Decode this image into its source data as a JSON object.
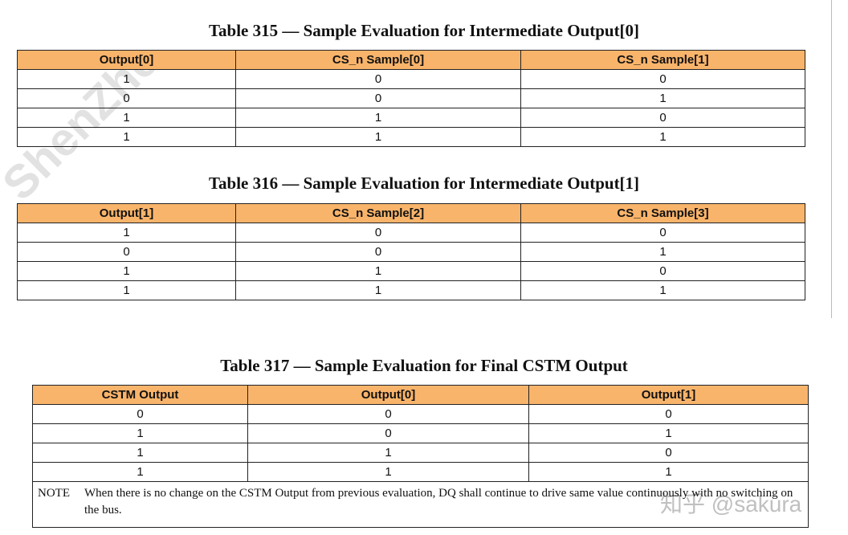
{
  "tables": [
    {
      "title": "Table 315 — Sample Evaluation for Intermediate Output[0]",
      "header": [
        "Output[0]",
        "CS_n Sample[0]",
        "CS_n Sample[1]"
      ],
      "rows": [
        [
          1,
          0,
          0
        ],
        [
          0,
          0,
          1
        ],
        [
          1,
          1,
          0
        ],
        [
          1,
          1,
          1
        ]
      ]
    },
    {
      "title": "Table 316 — Sample Evaluation for Intermediate Output[1]",
      "header": [
        "Output[1]",
        "CS_n Sample[2]",
        "CS_n Sample[3]"
      ],
      "rows": [
        [
          1,
          0,
          0
        ],
        [
          0,
          0,
          1
        ],
        [
          1,
          1,
          0
        ],
        [
          1,
          1,
          1
        ]
      ]
    },
    {
      "title": "Table 317 — Sample Evaluation for Final CSTM Output",
      "header": [
        "CSTM Output",
        "Output[0]",
        "Output[1]"
      ],
      "rows": [
        [
          0,
          0,
          0
        ],
        [
          1,
          0,
          1
        ],
        [
          1,
          1,
          0
        ],
        [
          1,
          1,
          1
        ]
      ],
      "note": {
        "label": "NOTE",
        "text": "When there is no change on the CSTM Output from previous evaluation, DQ shall continue to drive same value continuously with no switching on the bus."
      }
    }
  ],
  "watermarks": [
    "ShenZhe",
    "知乎 @sakura"
  ]
}
